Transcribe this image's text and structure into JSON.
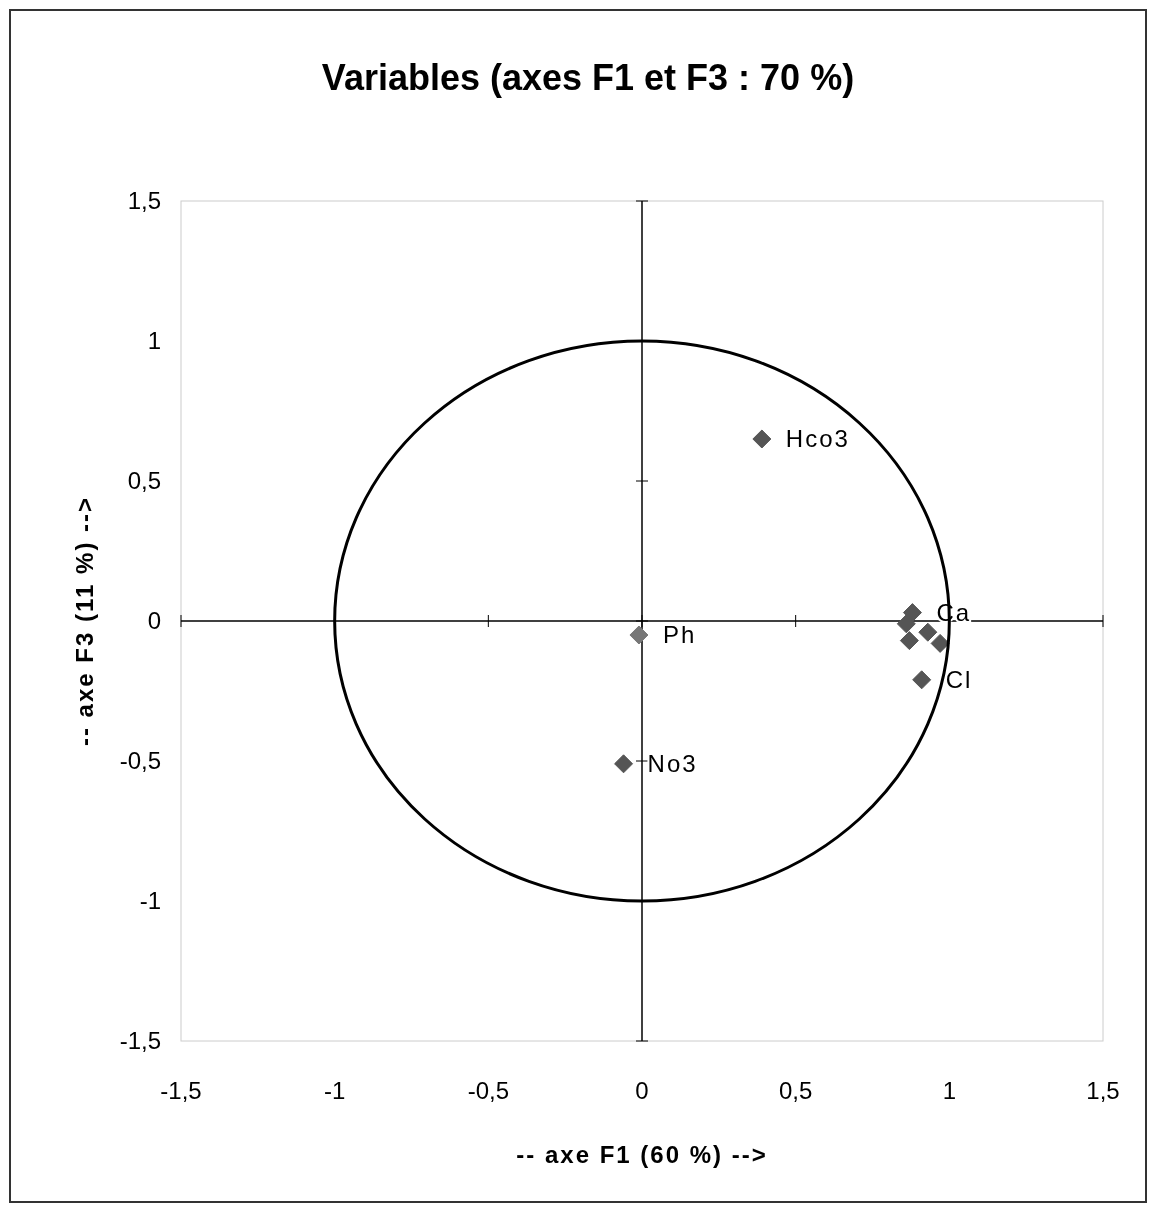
{
  "chart_data": {
    "type": "scatter",
    "title": "Variables (axes F1 et F3 : 70 %)",
    "xlabel": "-- axe F1 (60 %) -->",
    "ylabel": "-- axe F3 (11 %) -->",
    "xlim": [
      -1.5,
      1.5
    ],
    "ylim": [
      -1.5,
      1.5
    ],
    "xticks": [
      {
        "value": -1.5,
        "label": "-1,5"
      },
      -1,
      {
        "value": -0.5,
        "label": "-0,5"
      },
      0,
      {
        "value": 0.5,
        "label": "0,5"
      },
      1,
      {
        "value": 1.5,
        "label": "1,5"
      }
    ],
    "yticks": [
      {
        "value": -1.5,
        "label": "-1,5"
      },
      -1,
      {
        "value": -0.5,
        "label": "-0,5"
      },
      0,
      {
        "value": 0.5,
        "label": "0,5"
      },
      1,
      {
        "value": 1.5,
        "label": "1,5"
      }
    ],
    "marker": "diamond",
    "series": [
      {
        "name": "Hco3",
        "color": "#555555",
        "x": [
          0.39
        ],
        "values": [
          0.65
        ]
      },
      {
        "name": "Ph",
        "color": "#777777",
        "x": [
          -0.01
        ],
        "values": [
          -0.05
        ]
      },
      {
        "name": "No3",
        "color": "#555555",
        "x": [
          -0.06
        ],
        "values": [
          -0.51
        ]
      },
      {
        "name": "Ca",
        "color": "#555555",
        "x": [
          0.88
        ],
        "values": [
          0.03
        ]
      },
      {
        "name": "Cl",
        "color": "#555555",
        "x": [
          0.91
        ],
        "values": [
          -0.21
        ]
      },
      {
        "color": "#555555",
        "x": [
          0.86,
          0.87,
          0.93,
          0.97
        ],
        "values": [
          -0.01,
          -0.07,
          -0.04,
          -0.08
        ]
      }
    ]
  }
}
